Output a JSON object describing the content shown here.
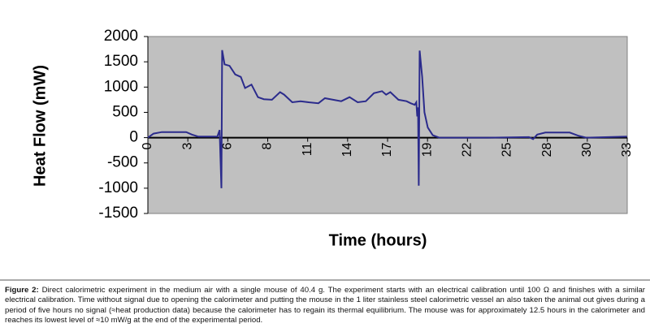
{
  "chart_data": {
    "type": "line",
    "ylabel": "Heat Flow (mW)",
    "xlabel": "Time (hours)",
    "series": [
      {
        "color": "#2b2b8c",
        "x": [
          0,
          0.39,
          0.96,
          2.64,
          3.03,
          3.48,
          4.78,
          4.94,
          5.06,
          5.11,
          5.28,
          5.62,
          6.01,
          6.4,
          6.69,
          7.13,
          7.58,
          7.98,
          8.54,
          9.1,
          9.38,
          9.94,
          10.51,
          11.07,
          11.74,
          12.19,
          12.75,
          13.31,
          13.88,
          14.44,
          15.0,
          15.56,
          16.12,
          16.4,
          16.69,
          17.25,
          17.81,
          18.09,
          18.37,
          18.48,
          18.54,
          18.6,
          18.65,
          18.71,
          18.88,
          19.04,
          19.27,
          19.61,
          20.06,
          23.43,
          26.24,
          26.52,
          26.8,
          27.36,
          29.04,
          29.61,
          30.17,
          32.98
        ],
        "values": [
          0,
          80,
          110,
          110,
          60,
          20,
          20,
          150,
          -1000,
          1730,
          1450,
          1420,
          1250,
          1200,
          980,
          1050,
          800,
          760,
          750,
          900,
          850,
          700,
          720,
          700,
          680,
          780,
          750,
          720,
          800,
          700,
          720,
          880,
          920,
          850,
          900,
          750,
          720,
          680,
          650,
          700,
          420,
          600,
          -950,
          1720,
          1200,
          500,
          200,
          50,
          0,
          0,
          10,
          -30,
          60,
          100,
          100,
          40,
          0,
          20
        ]
      }
    ],
    "xlim": [
      0,
      33
    ],
    "ylim": [
      -1500,
      2000
    ],
    "xticks": [
      {
        "value": 0,
        "label": "0"
      },
      {
        "value": 2.75,
        "label": "3"
      },
      {
        "value": 5.5,
        "label": "6"
      },
      {
        "value": 8.25,
        "label": "8"
      },
      {
        "value": 11,
        "label": "11"
      },
      {
        "value": 13.75,
        "label": "14"
      },
      {
        "value": 16.5,
        "label": "17"
      },
      {
        "value": 19.25,
        "label": "19"
      },
      {
        "value": 22,
        "label": "22"
      },
      {
        "value": 24.75,
        "label": "25"
      },
      {
        "value": 27.5,
        "label": "28"
      },
      {
        "value": 30.25,
        "label": "30"
      },
      {
        "value": 33,
        "label": "33"
      }
    ],
    "yticks": [
      -1500,
      -1000,
      -500,
      0,
      500,
      1000,
      1500,
      2000
    ],
    "grid": false,
    "plot_background": "#c0c0c0"
  },
  "caption": {
    "label": "Figure 2:",
    "text": "Direct calorimetric experiment in the medium air with a single mouse of 40.4 g. The experiment starts with an electrical calibration until 100 Ω and finishes with a similar electrical calibration. Time without signal due to opening the calorimeter and putting the mouse in the 1 liter stainless steel calorimetric vessel an also taken the animal out gives during a period of five hours no signal (≈heat production data) because the calorimeter has to regain its thermal equilibrium. The mouse was for approximately 12.5 hours in the calorimeter and reaches its lowest level of ≈10 mW/g at the end of the experimental period."
  }
}
